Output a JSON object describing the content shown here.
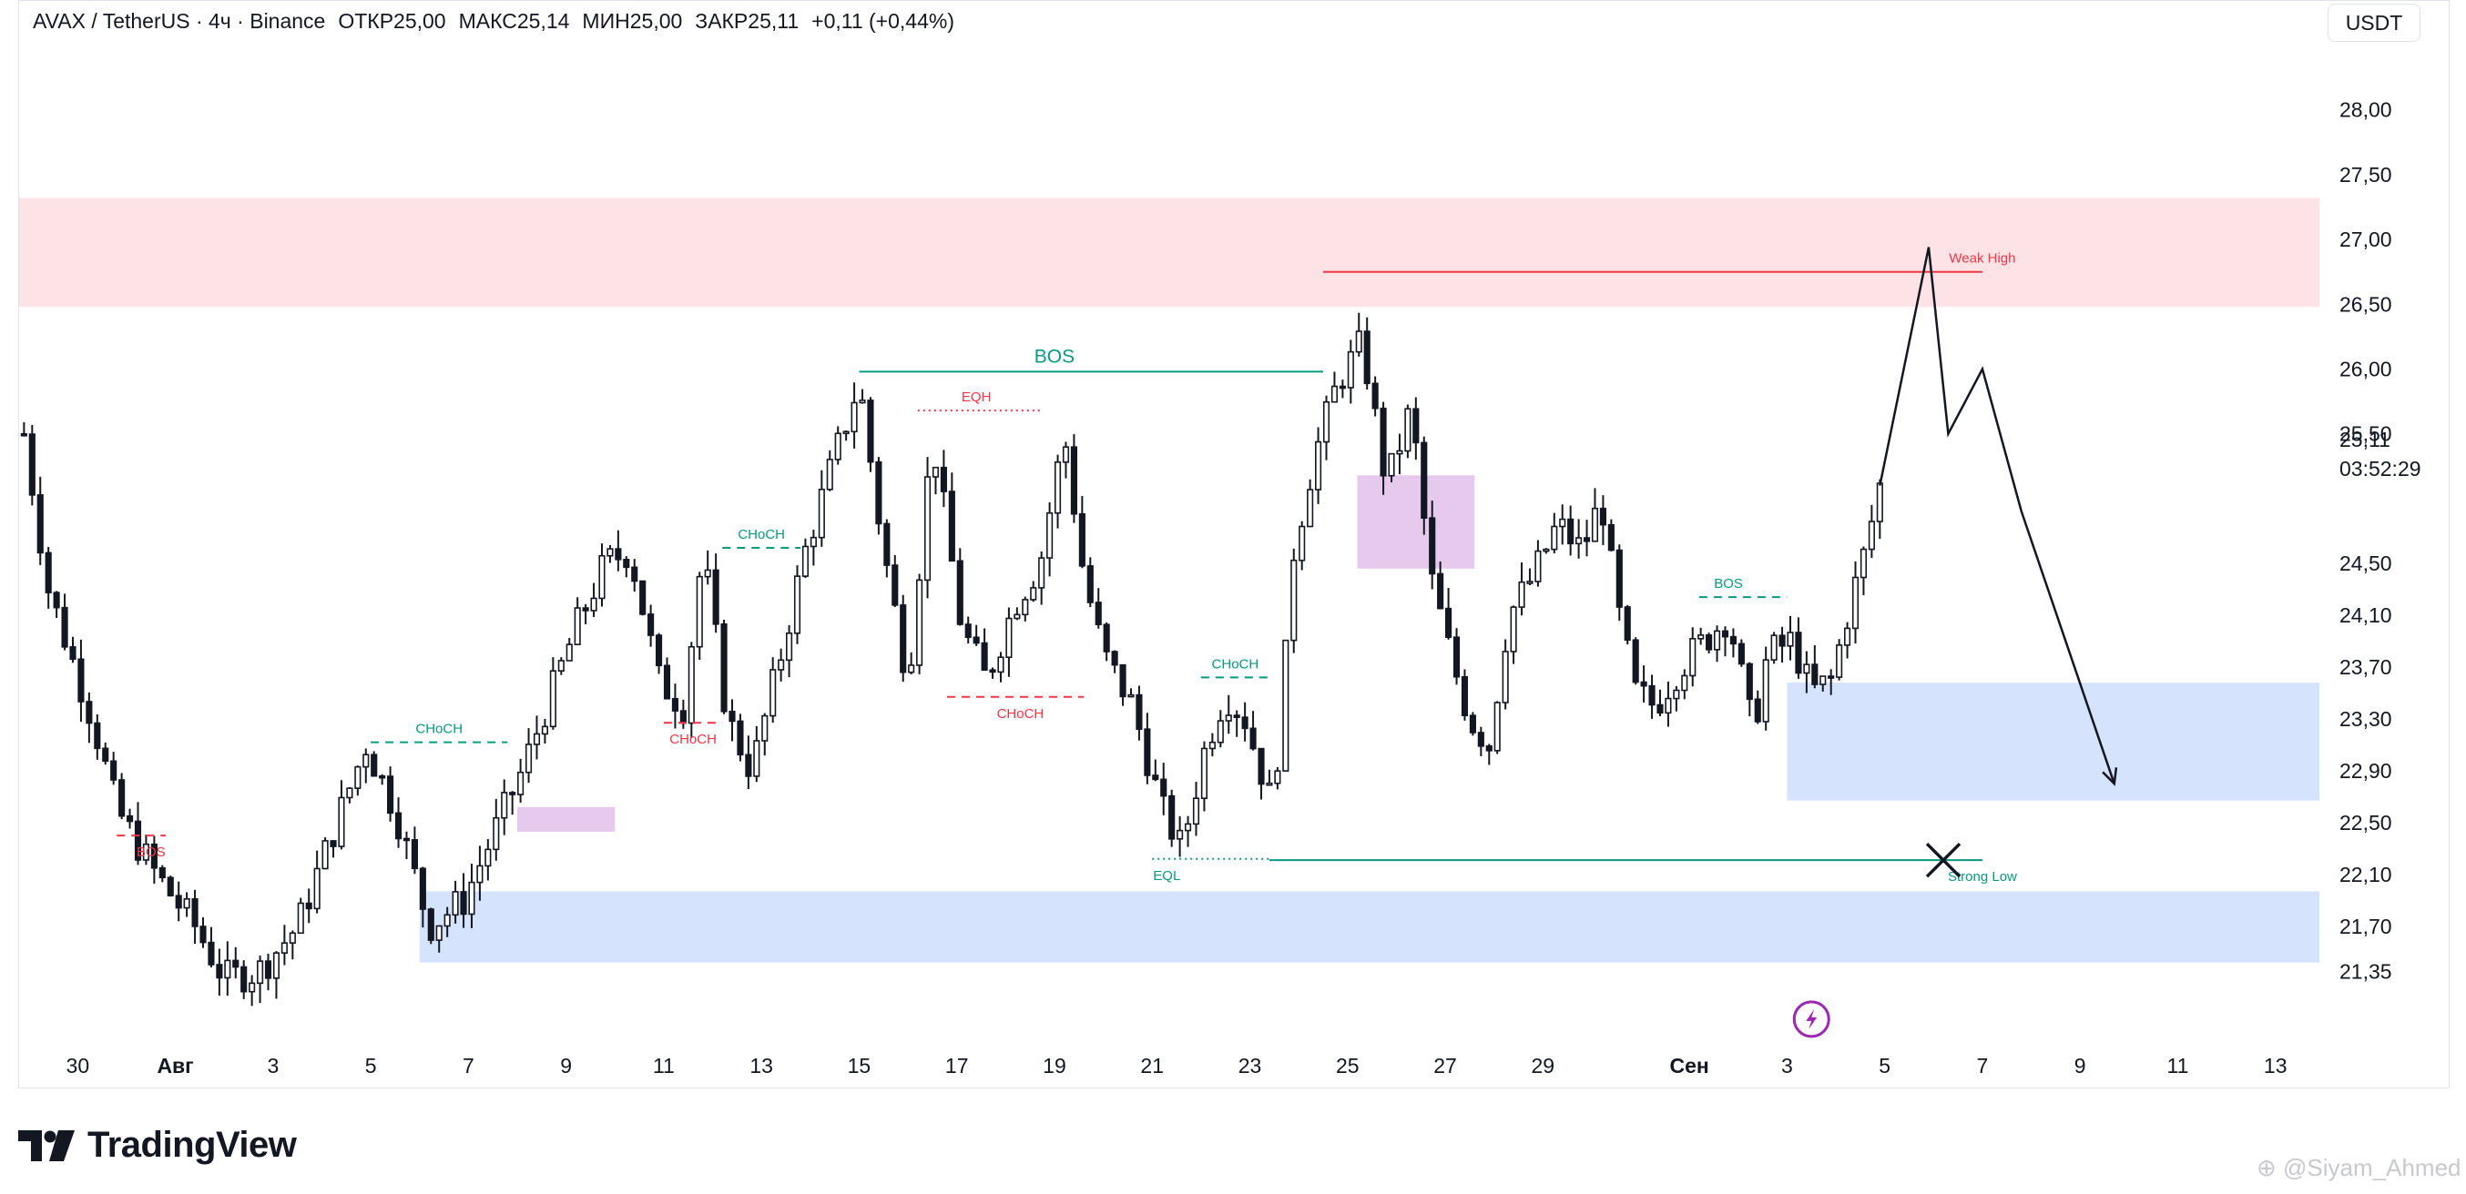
{
  "header": {
    "symbol": "AVAX / TetherUS · 4ч · Binance",
    "ohlc": [
      {
        "label": "ОТКР",
        "value": "25,00"
      },
      {
        "label": "МАКС",
        "value": "25,14"
      },
      {
        "label": "МИН",
        "value": "25,00"
      },
      {
        "label": "ЗАКР",
        "value": "25,11"
      }
    ],
    "change": "+0,11 (+0,44%)",
    "currency": "USDT"
  },
  "brand": {
    "name": "TradingView",
    "watermark": "@Siyam_Ahmed"
  },
  "colors": {
    "bullish_text": "#089981",
    "bearish_text": "#f23645",
    "supply_zone": "#fde3e5",
    "demand_zone": "#d6e3fd",
    "fvg_zone": "#e7c9ee",
    "candle": "#131722",
    "axis_text": "#131722",
    "badge": "#9c27b0"
  },
  "chart_data": {
    "type": "candlestick",
    "symbol": "AVAX/USDT",
    "interval": "4h",
    "y_axis": {
      "ticks": [
        "28,00",
        "27,50",
        "27,00",
        "26,50",
        "26,00",
        "25,50",
        "24,50",
        "24,10",
        "23,70",
        "23,30",
        "22,90",
        "22,50",
        "22,10",
        "21,70",
        "21,35"
      ],
      "tick_values": [
        28.0,
        27.5,
        27.0,
        26.5,
        26.0,
        25.5,
        24.5,
        24.1,
        23.7,
        23.3,
        22.9,
        22.5,
        22.1,
        21.7,
        21.35
      ],
      "last_price": "25,11",
      "countdown": "03:52:29",
      "range": [
        21.2,
        28.3
      ]
    },
    "x_axis": {
      "labels": [
        {
          "label": "30",
          "day": -2,
          "bold": false
        },
        {
          "label": "Авг",
          "day": 0,
          "bold": true
        },
        {
          "label": "3",
          "day": 2,
          "bold": false
        },
        {
          "label": "5",
          "day": 4,
          "bold": false
        },
        {
          "label": "7",
          "day": 6,
          "bold": false
        },
        {
          "label": "9",
          "day": 8,
          "bold": false
        },
        {
          "label": "11",
          "day": 10,
          "bold": false
        },
        {
          "label": "13",
          "day": 12,
          "bold": false
        },
        {
          "label": "15",
          "day": 14,
          "bold": false
        },
        {
          "label": "17",
          "day": 16,
          "bold": false
        },
        {
          "label": "19",
          "day": 18,
          "bold": false
        },
        {
          "label": "21",
          "day": 20,
          "bold": false
        },
        {
          "label": "23",
          "day": 22,
          "bold": false
        },
        {
          "label": "25",
          "day": 24,
          "bold": false
        },
        {
          "label": "27",
          "day": 26,
          "bold": false
        },
        {
          "label": "29",
          "day": 28,
          "bold": false
        },
        {
          "label": "Сен",
          "day": 31,
          "bold": true
        },
        {
          "label": "3",
          "day": 33,
          "bold": false
        },
        {
          "label": "5",
          "day": 35,
          "bold": false
        },
        {
          "label": "7",
          "day": 37,
          "bold": false
        },
        {
          "label": "9",
          "day": 39,
          "bold": false
        },
        {
          "label": "11",
          "day": 41,
          "bold": false
        },
        {
          "label": "13",
          "day": 43,
          "bold": false
        }
      ],
      "range_days": [
        -3.2,
        43.9
      ]
    },
    "swing_path": [
      [
        -3.1,
        25.5
      ],
      [
        -2.6,
        24.3
      ],
      [
        -1.7,
        23.3
      ],
      [
        -1.2,
        22.6
      ],
      [
        -0.4,
        22.1
      ],
      [
        0.4,
        21.7
      ],
      [
        1.0,
        21.3
      ],
      [
        1.7,
        21.35
      ],
      [
        2.5,
        21.7
      ],
      [
        3.2,
        22.4
      ],
      [
        3.9,
        23.1
      ],
      [
        4.5,
        22.6
      ],
      [
        5.2,
        21.7
      ],
      [
        5.9,
        21.9
      ],
      [
        6.5,
        22.4
      ],
      [
        7.1,
        22.9
      ],
      [
        7.6,
        23.4
      ],
      [
        8.2,
        24.0
      ],
      [
        8.8,
        24.5
      ],
      [
        9.3,
        24.6
      ],
      [
        9.9,
        23.6
      ],
      [
        10.4,
        23.4
      ],
      [
        10.8,
        24.6
      ],
      [
        11.3,
        23.3
      ],
      [
        11.8,
        22.9
      ],
      [
        12.4,
        23.8
      ],
      [
        12.9,
        24.6
      ],
      [
        13.4,
        25.2
      ],
      [
        14.0,
        25.9
      ],
      [
        14.5,
        24.6
      ],
      [
        15.0,
        23.6
      ],
      [
        15.5,
        25.5
      ],
      [
        16.1,
        24.0
      ],
      [
        16.6,
        23.6
      ],
      [
        17.2,
        24.2
      ],
      [
        17.7,
        24.5
      ],
      [
        18.2,
        25.5
      ],
      [
        18.6,
        24.4
      ],
      [
        19.0,
        23.8
      ],
      [
        19.6,
        23.4
      ],
      [
        20.2,
        22.6
      ],
      [
        20.6,
        22.3
      ],
      [
        21.1,
        23.1
      ],
      [
        21.5,
        23.5
      ],
      [
        21.9,
        23.3
      ],
      [
        22.4,
        22.7
      ],
      [
        22.6,
        23.1
      ],
      [
        22.9,
        24.6
      ],
      [
        23.3,
        25.3
      ],
      [
        23.8,
        25.9
      ],
      [
        24.3,
        26.2
      ],
      [
        24.8,
        25.1
      ],
      [
        25.3,
        25.7
      ],
      [
        25.7,
        24.4
      ],
      [
        26.1,
        23.8
      ],
      [
        26.5,
        23.3
      ],
      [
        26.9,
        23.1
      ],
      [
        27.3,
        24.1
      ],
      [
        27.8,
        24.4
      ],
      [
        28.3,
        24.8
      ],
      [
        28.8,
        24.6
      ],
      [
        29.2,
        25.0
      ],
      [
        29.5,
        24.2
      ],
      [
        29.9,
        23.5
      ],
      [
        30.3,
        23.4
      ],
      [
        30.8,
        23.7
      ],
      [
        31.3,
        23.9
      ],
      [
        31.8,
        24.1
      ],
      [
        32.3,
        23.2
      ],
      [
        32.6,
        23.8
      ],
      [
        33.1,
        23.9
      ],
      [
        33.5,
        23.5
      ],
      [
        33.9,
        23.6
      ],
      [
        34.3,
        24.2
      ],
      [
        34.6,
        24.6
      ],
      [
        34.9,
        25.1
      ]
    ],
    "zones": [
      {
        "type": "supply",
        "name": "upper-supply-zone",
        "x0": -3.2,
        "x1": 43.9,
        "y0": 26.48,
        "y1": 27.32
      },
      {
        "type": "demand",
        "name": "recent-demand-zone",
        "x0": 33.0,
        "x1": 43.9,
        "y0": 22.67,
        "y1": 23.58
      },
      {
        "type": "demand",
        "name": "lower-demand-zone",
        "x0": 5.0,
        "x1": 43.9,
        "y0": 21.42,
        "y1": 21.97
      },
      {
        "type": "fvg",
        "name": "fvg-zone-early",
        "x0": 7.0,
        "x1": 9.0,
        "y0": 22.43,
        "y1": 22.62
      },
      {
        "type": "fvg",
        "name": "fvg-zone-mid",
        "x0": 24.2,
        "x1": 26.6,
        "y0": 24.46,
        "y1": 25.18
      }
    ],
    "levels": [
      {
        "label": "BOS",
        "kind": "bos",
        "style": "solid",
        "color": "bullish",
        "x0": 14.0,
        "x1": 23.5,
        "y": 25.98,
        "label_x": 18.0,
        "label_pos": "above",
        "font": 21
      },
      {
        "label": "EQH",
        "kind": "eqh",
        "style": "dotted",
        "color": "bearish",
        "x0": 15.2,
        "x1": 17.7,
        "y": 25.68,
        "label_x": 16.4,
        "label_pos": "above",
        "font": 15
      },
      {
        "label": "Weak High",
        "kind": "weak-high",
        "style": "solid",
        "color": "bearish",
        "x0": 23.5,
        "x1": 37.0,
        "y": 26.75,
        "label_x": 37.0,
        "label_pos": "above",
        "font": 15
      },
      {
        "label": "Strong Low",
        "kind": "strong-low",
        "style": "solid",
        "color": "bullish",
        "x0": 22.4,
        "x1": 37.0,
        "y": 22.21,
        "label_x": 37.0,
        "label_pos": "below",
        "font": 15
      },
      {
        "label": "EQL",
        "kind": "eql",
        "style": "dotted",
        "color": "bullish",
        "x0": 20.0,
        "x1": 22.4,
        "y": 22.22,
        "label_x": 20.3,
        "label_pos": "below",
        "font": 15
      },
      {
        "label": "CHoCH",
        "kind": "choch",
        "style": "dashed",
        "color": "bullish",
        "x0": 4.0,
        "x1": 6.8,
        "y": 23.12,
        "label_x": 5.4,
        "label_pos": "above",
        "font": 15
      },
      {
        "label": "CHoCH",
        "kind": "choch",
        "style": "dashed",
        "color": "bullish",
        "x0": 11.2,
        "x1": 12.8,
        "y": 24.62,
        "label_x": 12.0,
        "label_pos": "above",
        "font": 15
      },
      {
        "label": "CHoCH",
        "kind": "choch",
        "style": "dashed",
        "color": "bullish",
        "x0": 21.0,
        "x1": 22.4,
        "y": 23.62,
        "label_x": 21.7,
        "label_pos": "above",
        "font": 15
      },
      {
        "label": "BOS",
        "kind": "bos",
        "style": "dashed",
        "color": "bullish",
        "x0": 31.2,
        "x1": 33.0,
        "y": 24.24,
        "label_x": 31.8,
        "label_pos": "above",
        "font": 15
      },
      {
        "label": "CHoCH",
        "kind": "choch",
        "style": "dashed",
        "color": "bearish",
        "x0": 10.0,
        "x1": 11.2,
        "y": 23.27,
        "label_x": 10.6,
        "label_pos": "below",
        "font": 15
      },
      {
        "label": "CHoCH",
        "kind": "choch",
        "style": "dashed",
        "color": "bearish",
        "x0": 15.8,
        "x1": 18.6,
        "y": 23.47,
        "label_x": 17.3,
        "label_pos": "below",
        "font": 15
      },
      {
        "label": "BOS",
        "kind": "bos",
        "style": "dashed",
        "color": "bearish",
        "x0": -1.2,
        "x1": -0.2,
        "y": 22.4,
        "label_x": -0.5,
        "label_pos": "below",
        "font": 15
      }
    ],
    "projection": [
      [
        34.9,
        25.1
      ],
      [
        35.9,
        26.94
      ],
      [
        36.3,
        25.5
      ],
      [
        37.0,
        26.0
      ],
      [
        37.8,
        24.9
      ],
      [
        39.7,
        22.8
      ]
    ],
    "cross_marker": {
      "x": 36.2,
      "y": 22.21
    },
    "lightning_badge": {
      "x": 33.5,
      "y": 21.32
    }
  }
}
